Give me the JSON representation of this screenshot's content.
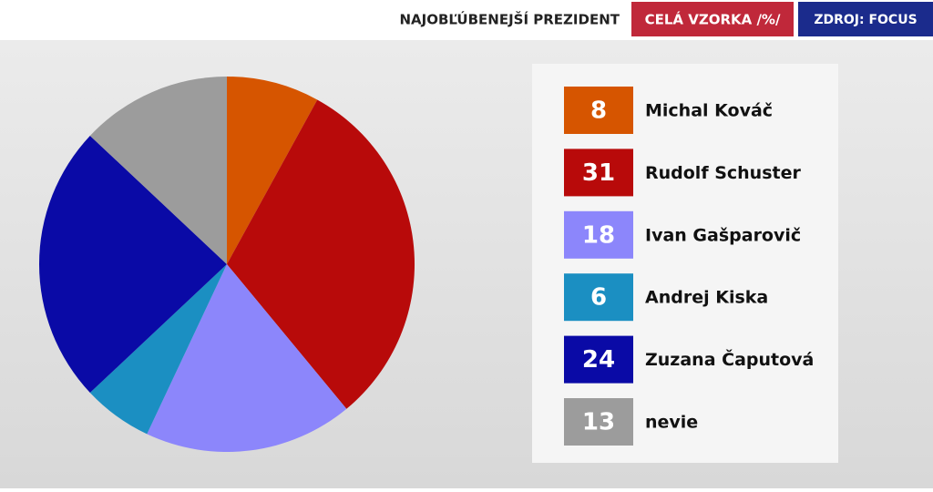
{
  "chart_data": {
    "type": "pie",
    "title": "NAJOBĽÚBENEJŠÍ PREZIDENT",
    "subtitle": "CELÁ VZORKA /%/",
    "source": "ZDROJ: FOCUS",
    "categories": [
      "Michal Kováč",
      "Rudolf Schuster",
      "Ivan Gašparovič",
      "Andrej Kiska",
      "Zuzana Čaputová",
      "nevie"
    ],
    "values": [
      8,
      31,
      18,
      6,
      24,
      13
    ],
    "colors": [
      "#d65500",
      "#b80a0a",
      "#8c86fb",
      "#1b8fc2",
      "#0a0aa6",
      "#9c9c9c"
    ]
  }
}
